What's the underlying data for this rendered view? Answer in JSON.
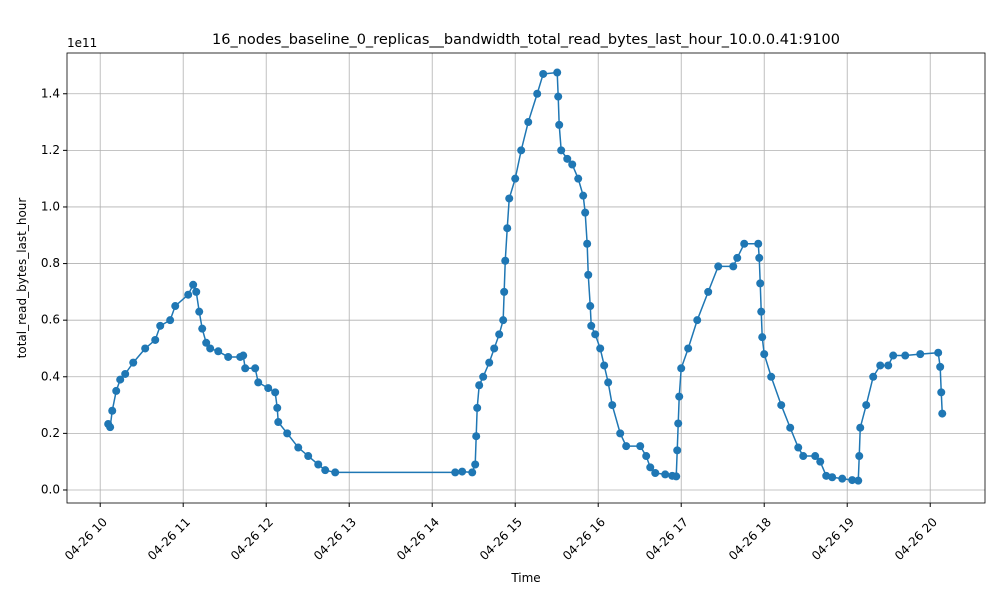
{
  "chart_data": {
    "type": "line",
    "title": "16_nodes_baseline_0_replicas__bandwidth_total_read_bytes_last_hour_10.0.0.41:9100",
    "x_label": "Time",
    "y_label": "total_read_bytes_last_hour",
    "y_offset_label": "1e11",
    "grid": true,
    "xlim": [
      9.6,
      20.66
    ],
    "ylim": [
      -0.046,
      1.544
    ],
    "xticks": [
      {
        "value": 10,
        "label": "04-26 10"
      },
      {
        "value": 11,
        "label": "04-26 11"
      },
      {
        "value": 12,
        "label": "04-26 12"
      },
      {
        "value": 13,
        "label": "04-26 13"
      },
      {
        "value": 14,
        "label": "04-26 14"
      },
      {
        "value": 15,
        "label": "04-26 15"
      },
      {
        "value": 16,
        "label": "04-26 16"
      },
      {
        "value": 17,
        "label": "04-26 17"
      },
      {
        "value": 18,
        "label": "04-26 18"
      },
      {
        "value": 19,
        "label": "04-26 19"
      },
      {
        "value": 20,
        "label": "04-26 20"
      }
    ],
    "yticks": [
      {
        "value": 0,
        "label": "0.0"
      },
      0.2,
      0.4,
      0.6,
      0.8,
      {
        "value": 1,
        "label": "1.0"
      },
      1.2,
      1.4
    ],
    "x": [
      10.096,
      10.12,
      10.145,
      10.193,
      10.241,
      10.301,
      10.398,
      10.542,
      10.663,
      10.723,
      10.843,
      10.904,
      11.06,
      11.12,
      11.157,
      11.193,
      11.229,
      11.277,
      11.325,
      11.422,
      11.542,
      11.687,
      11.723,
      11.747,
      11.867,
      11.904,
      12.024,
      12.108,
      12.133,
      12.145,
      12.253,
      12.386,
      12.506,
      12.627,
      12.711,
      12.831,
      14.277,
      14.361,
      14.482,
      14.518,
      14.53,
      14.542,
      14.566,
      14.614,
      14.687,
      14.747,
      14.807,
      14.855,
      14.867,
      14.88,
      14.904,
      14.928,
      15.0,
      15.072,
      15.157,
      15.265,
      15.337,
      15.506,
      15.518,
      15.53,
      15.554,
      15.627,
      15.687,
      15.759,
      15.819,
      15.843,
      15.867,
      15.88,
      15.904,
      15.916,
      15.964,
      16.024,
      16.072,
      16.12,
      16.169,
      16.265,
      16.337,
      16.506,
      16.578,
      16.627,
      16.687,
      16.807,
      16.892,
      16.94,
      16.952,
      16.964,
      16.976,
      17.0,
      17.084,
      17.193,
      17.325,
      17.446,
      17.627,
      17.675,
      17.759,
      17.928,
      17.94,
      17.952,
      17.964,
      17.976,
      18.0,
      18.084,
      18.205,
      18.313,
      18.41,
      18.47,
      18.614,
      18.675,
      18.747,
      18.819,
      18.94,
      19.06,
      19.133,
      19.145,
      19.157,
      19.229,
      19.313,
      19.398,
      19.494,
      19.554,
      19.699,
      19.88,
      20.096,
      20.12,
      20.133,
      20.145
    ],
    "series": [
      {
        "name": "total_read_bytes_last_hour",
        "color": "#1f77b4",
        "values": [
          0.233,
          0.222,
          0.28,
          0.35,
          0.39,
          0.41,
          0.45,
          0.5,
          0.53,
          0.58,
          0.6,
          0.65,
          0.69,
          0.725,
          0.7,
          0.63,
          0.57,
          0.52,
          0.5,
          0.49,
          0.47,
          0.47,
          0.475,
          0.43,
          0.43,
          0.38,
          0.36,
          0.345,
          0.29,
          0.24,
          0.2,
          0.15,
          0.12,
          0.09,
          0.07,
          0.062,
          0.062,
          0.065,
          0.062,
          0.09,
          0.19,
          0.29,
          0.37,
          0.4,
          0.45,
          0.5,
          0.55,
          0.6,
          0.7,
          0.81,
          0.925,
          1.03,
          1.1,
          1.2,
          1.3,
          1.4,
          1.47,
          1.475,
          1.39,
          1.29,
          1.2,
          1.17,
          1.15,
          1.1,
          1.04,
          0.98,
          0.87,
          0.76,
          0.65,
          0.58,
          0.55,
          0.5,
          0.44,
          0.38,
          0.3,
          0.2,
          0.155,
          0.155,
          0.12,
          0.08,
          0.06,
          0.055,
          0.05,
          0.048,
          0.14,
          0.235,
          0.33,
          0.43,
          0.5,
          0.6,
          0.7,
          0.79,
          0.79,
          0.82,
          0.87,
          0.87,
          0.82,
          0.73,
          0.63,
          0.54,
          0.48,
          0.4,
          0.3,
          0.22,
          0.15,
          0.12,
          0.12,
          0.1,
          0.05,
          0.045,
          0.04,
          0.035,
          0.033,
          0.12,
          0.22,
          0.3,
          0.4,
          0.44,
          0.44,
          0.475,
          0.475,
          0.48,
          0.485,
          0.435,
          0.345,
          0.27
        ]
      }
    ]
  }
}
